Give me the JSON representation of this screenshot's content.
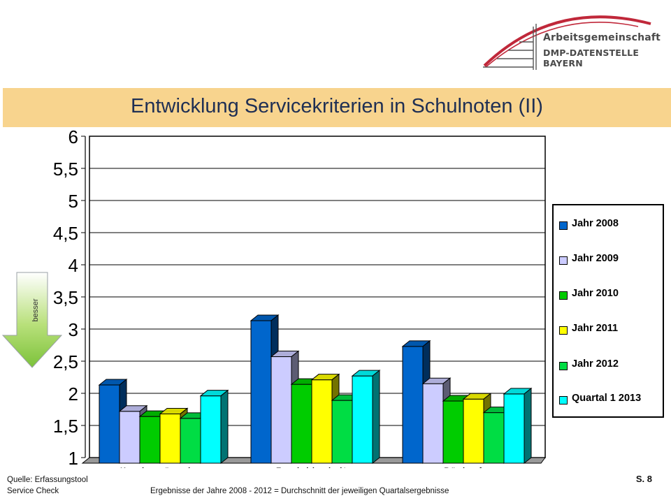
{
  "logo": {
    "line1": "Arbeitsgemeinschaft",
    "line2": "DMP-DATENSTELLE BAYERN"
  },
  "title": "Entwicklung Servicekriterien in Schulnoten (II)",
  "arrow_label": "besser",
  "footer": {
    "source_line1": "Quelle: Erfassungstool",
    "source_line2": "Service Check",
    "note": "Ergebnisse der Jahre 2008 - 2012  = Durchschnitt der jeweiligen Quartalsergebnisse",
    "page": "S. 8"
  },
  "chart_data": {
    "type": "bar",
    "title": "",
    "xlabel": "",
    "ylabel": "",
    "ylim": [
      1,
      6
    ],
    "yticks": [
      "1",
      "1,5",
      "2",
      "2,5",
      "3",
      "3,5",
      "4",
      "4,5",
      "5",
      "5,5",
      "6"
    ],
    "grid": true,
    "legend_position": "right",
    "categories": [
      "Kundenwünsche",
      "Erreichbarkeit",
      "Rückruf"
    ],
    "series": [
      {
        "name": "Jahr 2008",
        "color": "#0066cc",
        "values": [
          2.13,
          3.13,
          2.73
        ]
      },
      {
        "name": "Jahr 2009",
        "color": "#ccccff",
        "values": [
          1.72,
          2.57,
          2.15
        ]
      },
      {
        "name": "Jahr 2010",
        "color": "#00cc00",
        "values": [
          1.64,
          2.14,
          1.88
        ]
      },
      {
        "name": "Jahr 2011",
        "color": "#ffff00",
        "values": [
          1.68,
          2.21,
          1.91
        ]
      },
      {
        "name": "Jahr 2012",
        "color": "#00dd44",
        "values": [
          1.61,
          1.89,
          1.7
        ]
      },
      {
        "name": "Quartal 1 2013",
        "color": "#00ffff",
        "values": [
          1.96,
          2.27,
          1.99
        ]
      }
    ]
  }
}
